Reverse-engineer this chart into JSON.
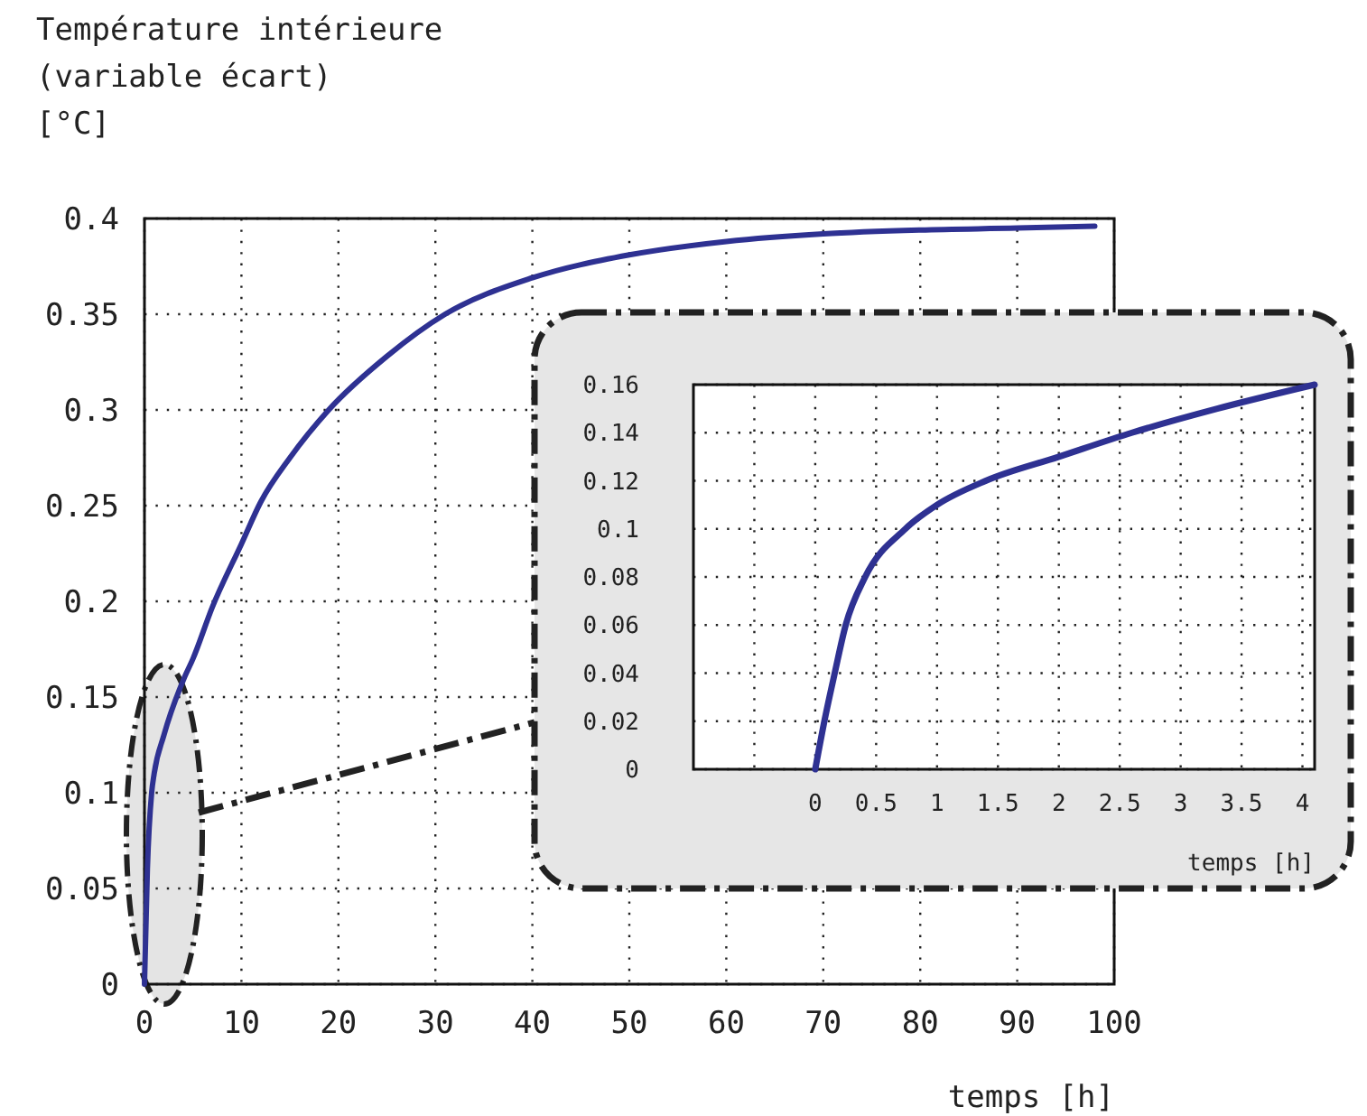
{
  "chart_data": [
    {
      "type": "line",
      "ylabel": "Température intérieure\n(variable écart)\n[°C]",
      "xlabel": "temps [h]",
      "x": [
        0,
        0.3,
        0.74,
        1,
        2,
        4.1,
        5,
        7,
        10,
        12,
        15,
        19,
        25,
        31,
        40,
        50,
        60,
        70,
        80,
        90,
        98
      ],
      "series": [
        {
          "color": "#2e3192",
          "values": [
            0,
            0.06,
            0.1,
            0.11,
            0.13,
            0.16,
            0.17,
            0.197,
            0.23,
            0.252,
            0.275,
            0.3,
            0.328,
            0.35,
            0.369,
            0.381,
            0.388,
            0.392,
            0.394,
            0.395,
            0.396
          ]
        }
      ],
      "xlim": [
        0,
        100
      ],
      "ylim": [
        0,
        0.4
      ],
      "xticks": [
        0,
        10,
        20,
        30,
        40,
        50,
        60,
        70,
        80,
        90,
        100
      ],
      "yticks": [
        0,
        0.05,
        0.1,
        0.15,
        0.2,
        0.25,
        0.3,
        0.35,
        0.4
      ],
      "grid": true
    },
    {
      "type": "line",
      "xlabel": "temps [h]",
      "x": [
        0,
        0.075,
        0.16,
        0.25,
        0.41,
        0.74,
        1,
        1.4,
        2,
        2.6,
        3.3,
        4.1
      ],
      "series": [
        {
          "color": "#2e3192",
          "values": [
            0,
            0.02,
            0.04,
            0.06,
            0.08,
            0.1,
            0.11,
            0.12,
            0.13,
            0.14,
            0.15,
            0.16
          ]
        }
      ],
      "xlim": [
        -1,
        4.1
      ],
      "ylim": [
        0,
        0.16
      ],
      "xticks": [
        {
          "value": -0.5,
          "label": null
        },
        0,
        0.5,
        1,
        1.5,
        2,
        2.5,
        3,
        3.5,
        4
      ],
      "yticks": [
        0,
        0.02,
        0.04,
        0.06,
        0.08,
        0.1,
        0.12,
        0.14,
        0.16
      ],
      "grid": true
    }
  ]
}
